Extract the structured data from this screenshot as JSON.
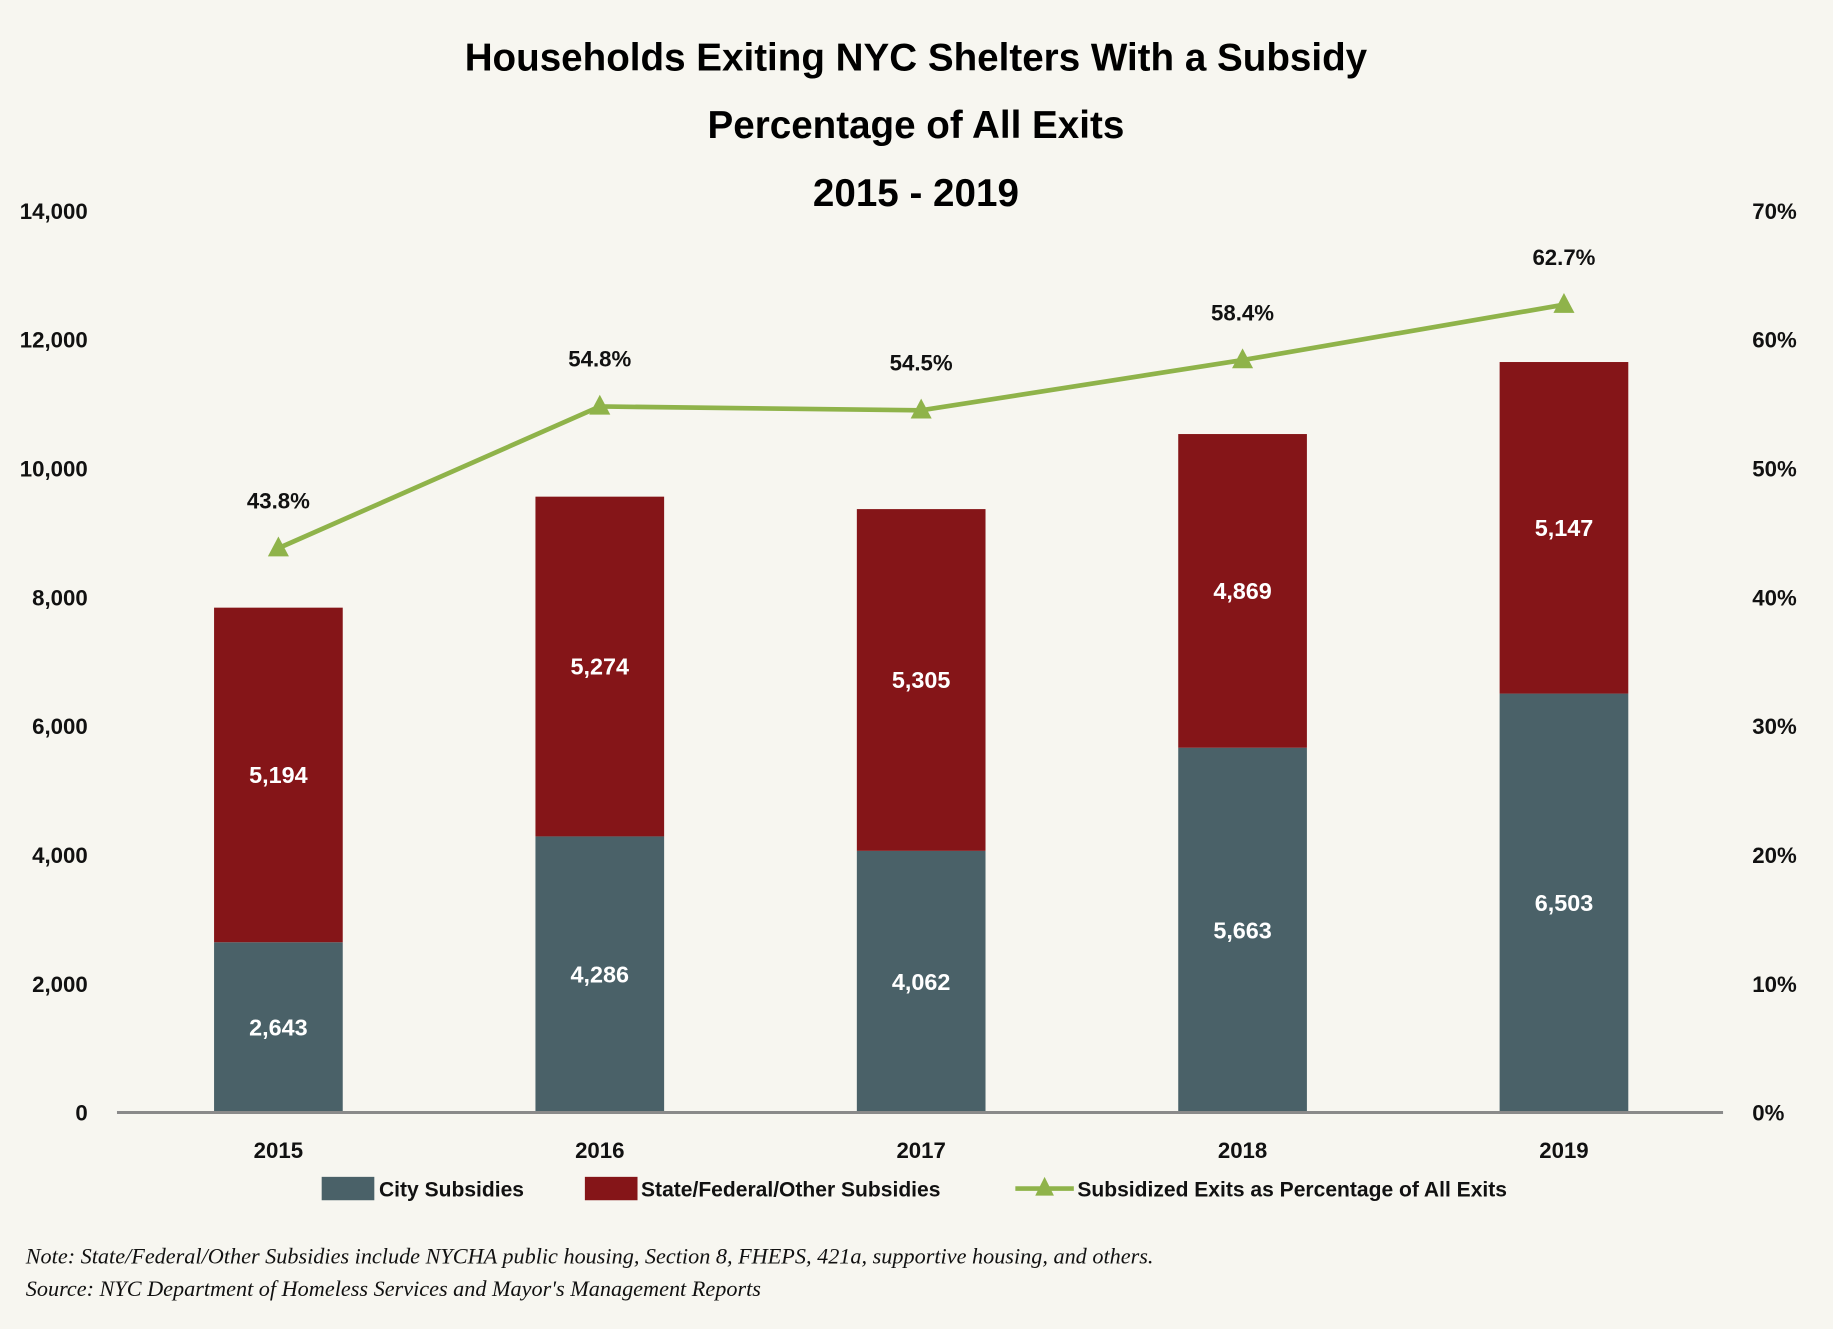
{
  "chart_data": {
    "type": "bar",
    "stacked": true,
    "title": [
      "Households Exiting NYC Shelters With a Subsidy",
      "Percentage of All Exits",
      "2015 - 2019"
    ],
    "categories": [
      "2015",
      "2016",
      "2017",
      "2018",
      "2019"
    ],
    "series": [
      {
        "name": "City Subsidies",
        "color": "#4a6168",
        "values": [
          2643,
          4286,
          4062,
          5663,
          6503
        ],
        "labels": [
          "2,643",
          "4,286",
          "4,062",
          "5,663",
          "6,503"
        ]
      },
      {
        "name": "State/Federal/Other Subsidies",
        "color": "#851518",
        "values": [
          5194,
          5274,
          5305,
          4869,
          5147
        ],
        "labels": [
          "5,194",
          "5,274",
          "5,305",
          "4,869",
          "5,147"
        ]
      }
    ],
    "line_series": {
      "name": "Subsidized Exits as Percentage of All Exits",
      "color": "#8fb34a",
      "axis": "right",
      "values": [
        43.8,
        54.8,
        54.5,
        58.4,
        62.7
      ],
      "labels": [
        "43.8%",
        "54.8%",
        "54.5%",
        "58.4%",
        "62.7%"
      ]
    },
    "ylim": [
      0,
      14000
    ],
    "y_ticks": [
      "0",
      "2,000",
      "4,000",
      "6,000",
      "8,000",
      "10,000",
      "12,000",
      "14,000"
    ],
    "y2lim": [
      0,
      70
    ],
    "y2_ticks": [
      "0%",
      "10%",
      "20%",
      "30%",
      "40%",
      "50%",
      "60%",
      "70%"
    ],
    "grid": false,
    "legend_position": "bottom"
  },
  "notes": {
    "note": "Note: State/Federal/Other Subsidies include NYCHA public housing, Section 8, FHEPS, 421a, supportive housing, and others.",
    "source": "Source: NYC Department of Homeless Services and Mayor's Management Reports"
  }
}
